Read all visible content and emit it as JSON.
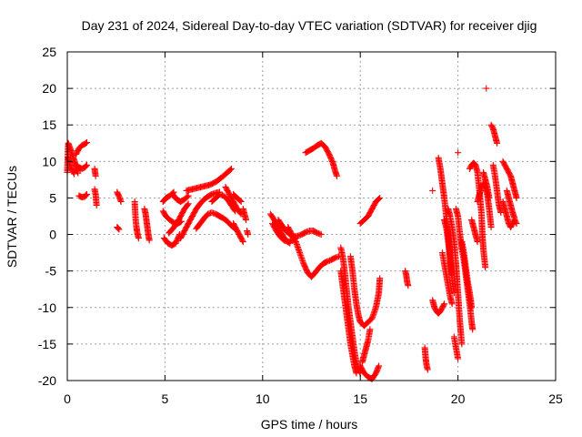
{
  "chart_data": {
    "type": "scatter",
    "title": "Day 231 of 2024, Sidereal Day-to-day VTEC variation (SDTVAR) for receiver djig",
    "xlabel": "GPS time / hours",
    "ylabel": "SDTVAR / TECUs",
    "xlim": [
      0,
      25
    ],
    "ylim": [
      -20,
      25
    ],
    "xticks": [
      0,
      5,
      10,
      15,
      20,
      25
    ],
    "yticks": [
      -20,
      -15,
      -10,
      -5,
      0,
      5,
      10,
      15,
      20,
      25
    ],
    "grid": true,
    "marker": "+",
    "color": "#ff0000",
    "segments": [
      [
        [
          0.0,
          8.5
        ],
        [
          0.05,
          12.5
        ],
        [
          0.15,
          11.8
        ],
        [
          0.25,
          11.0
        ],
        [
          0.35,
          10.2
        ],
        [
          0.45,
          9.2
        ],
        [
          0.55,
          8.4
        ]
      ],
      [
        [
          0.05,
          10.5
        ],
        [
          0.15,
          9.5
        ],
        [
          0.25,
          8.8
        ],
        [
          0.35,
          8.3
        ]
      ],
      [
        [
          0.45,
          11.0
        ],
        [
          0.6,
          11.8
        ],
        [
          0.75,
          12.2
        ],
        [
          0.9,
          12.4
        ],
        [
          1.0,
          12.6
        ]
      ],
      [
        [
          0.45,
          9.5
        ],
        [
          0.6,
          9.2
        ],
        [
          0.75,
          9.0
        ],
        [
          0.9,
          9.2
        ],
        [
          1.0,
          9.5
        ]
      ],
      [
        [
          0.6,
          5.3
        ],
        [
          0.75,
          5.1
        ],
        [
          0.9,
          5.2
        ],
        [
          1.0,
          5.5
        ]
      ],
      [
        [
          1.4,
          9.0
        ],
        [
          1.45,
          8.0
        ]
      ],
      [
        [
          1.4,
          6.2
        ],
        [
          1.45,
          5.5
        ],
        [
          1.5,
          4.0
        ]
      ],
      [
        [
          2.55,
          5.8
        ],
        [
          2.65,
          5.2
        ],
        [
          2.75,
          4.5
        ]
      ],
      [
        [
          2.55,
          1.0
        ],
        [
          2.65,
          0.7
        ]
      ],
      [
        [
          3.45,
          4.5
        ],
        [
          3.5,
          2.0
        ],
        [
          3.55,
          0.8
        ],
        [
          3.6,
          0.0
        ],
        [
          3.65,
          -0.5
        ]
      ],
      [
        [
          3.95,
          3.5
        ],
        [
          4.0,
          3.0
        ],
        [
          4.05,
          2.0
        ],
        [
          4.1,
          1.0
        ],
        [
          4.15,
          0.0
        ],
        [
          4.2,
          -0.8
        ]
      ],
      [
        [
          4.9,
          4.5
        ],
        [
          5.05,
          5.0
        ],
        [
          5.25,
          5.3
        ],
        [
          5.45,
          5.8
        ]
      ],
      [
        [
          4.9,
          3.2
        ],
        [
          5.05,
          2.5
        ],
        [
          5.25,
          2.0
        ],
        [
          5.45,
          1.6
        ],
        [
          5.65,
          1.5
        ],
        [
          5.85,
          1.8
        ]
      ],
      [
        [
          4.95,
          -0.5
        ],
        [
          5.15,
          -1.2
        ],
        [
          5.35,
          -1.5
        ],
        [
          5.55,
          -1.2
        ],
        [
          5.75,
          0.0
        ]
      ],
      [
        [
          5.2,
          0.2
        ],
        [
          5.4,
          0.8
        ],
        [
          5.6,
          1.5
        ],
        [
          5.8,
          2.5
        ],
        [
          6.0,
          3.5
        ],
        [
          6.2,
          4.2
        ]
      ],
      [
        [
          5.4,
          5.5
        ],
        [
          5.6,
          4.8
        ],
        [
          5.8,
          4.5
        ],
        [
          6.0,
          4.8
        ],
        [
          6.2,
          5.3
        ]
      ],
      [
        [
          5.8,
          -0.5
        ],
        [
          6.0,
          0.5
        ],
        [
          6.2,
          1.5
        ],
        [
          6.4,
          2.5
        ],
        [
          6.6,
          3.5
        ],
        [
          6.8,
          4.2
        ],
        [
          7.0,
          4.8
        ],
        [
          7.2,
          5.2
        ],
        [
          7.4,
          5.5
        ],
        [
          7.6,
          5.7
        ],
        [
          7.8,
          5.8
        ]
      ],
      [
        [
          6.1,
          6.0
        ],
        [
          6.4,
          6.2
        ],
        [
          6.7,
          6.4
        ],
        [
          7.0,
          6.6
        ],
        [
          7.3,
          6.8
        ],
        [
          7.6,
          7.2
        ],
        [
          7.9,
          7.8
        ],
        [
          8.2,
          8.5
        ],
        [
          8.4,
          9.0
        ]
      ],
      [
        [
          6.6,
          0.8
        ],
        [
          6.8,
          1.5
        ],
        [
          7.0,
          2.2
        ],
        [
          7.2,
          2.8
        ],
        [
          7.4,
          3.0
        ],
        [
          7.6,
          2.8
        ],
        [
          7.8,
          2.5
        ],
        [
          8.0,
          2.2
        ],
        [
          8.2,
          1.8
        ],
        [
          8.4,
          1.2
        ],
        [
          8.6,
          0.8
        ]
      ],
      [
        [
          7.4,
          4.5
        ],
        [
          7.6,
          5.0
        ],
        [
          7.8,
          5.5
        ],
        [
          8.0,
          5.3
        ],
        [
          8.2,
          4.8
        ],
        [
          8.4,
          4.0
        ],
        [
          8.6,
          3.2
        ]
      ],
      [
        [
          8.1,
          6.5
        ],
        [
          8.3,
          5.5
        ],
        [
          8.5,
          4.5
        ],
        [
          8.7,
          3.5
        ],
        [
          8.9,
          2.8
        ]
      ],
      [
        [
          8.5,
          5.5
        ],
        [
          8.7,
          5.0
        ],
        [
          8.9,
          4.5
        ]
      ],
      [
        [
          8.5,
          1.5
        ],
        [
          8.7,
          0.5
        ],
        [
          8.9,
          -0.5
        ],
        [
          9.0,
          -1.0
        ]
      ],
      [
        [
          9.0,
          3.5
        ],
        [
          9.1,
          2.5
        ],
        [
          9.15,
          2.0
        ]
      ],
      [
        [
          9.2,
          0.5
        ],
        [
          9.25,
          0.0
        ]
      ],
      [
        [
          10.4,
          2.8
        ],
        [
          10.6,
          2.0
        ],
        [
          10.8,
          1.0
        ],
        [
          11.0,
          0.0
        ],
        [
          11.2,
          -0.8
        ],
        [
          11.4,
          -1.2
        ]
      ],
      [
        [
          10.5,
          1.5
        ],
        [
          10.7,
          0.5
        ],
        [
          10.9,
          -0.3
        ],
        [
          11.1,
          -0.8
        ],
        [
          11.3,
          -1.0
        ],
        [
          11.5,
          -0.8
        ],
        [
          11.7,
          -0.5
        ]
      ],
      [
        [
          10.8,
          2.0
        ],
        [
          11.0,
          1.2
        ],
        [
          11.2,
          0.5
        ],
        [
          11.4,
          0.0
        ],
        [
          11.6,
          -0.3
        ],
        [
          11.8,
          -0.2
        ],
        [
          12.0,
          0.0
        ],
        [
          12.2,
          0.3
        ],
        [
          12.4,
          0.5
        ],
        [
          12.6,
          0.5
        ],
        [
          12.8,
          0.2
        ],
        [
          13.0,
          0.0
        ]
      ],
      [
        [
          11.3,
          1.0
        ],
        [
          11.5,
          0.0
        ],
        [
          11.7,
          -1.0
        ],
        [
          11.9,
          -2.5
        ],
        [
          12.1,
          -4.0
        ],
        [
          12.3,
          -5.2
        ],
        [
          12.5,
          -5.8
        ],
        [
          12.7,
          -5.2
        ],
        [
          12.9,
          -4.5
        ],
        [
          13.1,
          -4.0
        ],
        [
          13.3,
          -3.7
        ],
        [
          13.5,
          -3.5
        ],
        [
          13.7,
          -3.2
        ],
        [
          13.9,
          -3.0
        ]
      ],
      [
        [
          12.2,
          11.2
        ],
        [
          12.4,
          11.5
        ],
        [
          12.6,
          11.8
        ],
        [
          12.8,
          12.2
        ],
        [
          13.0,
          12.5
        ],
        [
          13.2,
          12.0
        ],
        [
          13.4,
          11.0
        ],
        [
          13.6,
          9.8
        ],
        [
          13.7,
          8.8
        ],
        [
          13.8,
          8.0
        ]
      ],
      [
        [
          14.0,
          -1.8
        ],
        [
          14.1,
          -3.0
        ],
        [
          14.2,
          -5.0
        ],
        [
          14.3,
          -7.5
        ],
        [
          14.4,
          -10.0
        ],
        [
          14.5,
          -12.0
        ],
        [
          14.6,
          -14.0
        ],
        [
          14.7,
          -16.0
        ],
        [
          14.8,
          -17.5
        ],
        [
          14.9,
          -18.5
        ],
        [
          15.0,
          -19.0
        ]
      ],
      [
        [
          14.0,
          -5.0
        ],
        [
          14.1,
          -7.0
        ],
        [
          14.2,
          -9.0
        ],
        [
          14.3,
          -11.0
        ],
        [
          14.4,
          -13.0
        ],
        [
          14.5,
          -15.0
        ],
        [
          14.6,
          -16.5
        ],
        [
          14.7,
          -18.0
        ],
        [
          14.8,
          -19.0
        ]
      ],
      [
        [
          14.5,
          -3.0
        ],
        [
          14.6,
          -5.0
        ],
        [
          14.7,
          -7.5
        ],
        [
          14.8,
          -9.5
        ],
        [
          14.9,
          -11.0
        ],
        [
          15.0,
          -12.0
        ],
        [
          15.2,
          -12.5
        ],
        [
          15.4,
          -12.0
        ],
        [
          15.6,
          -11.5
        ],
        [
          15.8,
          -10.0
        ],
        [
          15.95,
          -8.0
        ],
        [
          16.0,
          -6.0
        ]
      ],
      [
        [
          15.0,
          -18.0
        ],
        [
          15.2,
          -19.0
        ],
        [
          15.4,
          -19.5
        ],
        [
          15.6,
          -19.8
        ],
        [
          15.8,
          -19.0
        ],
        [
          15.95,
          -18.0
        ]
      ],
      [
        [
          15.1,
          -17.5
        ],
        [
          15.2,
          -16.5
        ],
        [
          15.3,
          -15.5
        ],
        [
          15.4,
          -14.5
        ],
        [
          15.5,
          -13.0
        ]
      ],
      [
        [
          15.0,
          1.5
        ],
        [
          15.2,
          2.0
        ],
        [
          15.4,
          2.5
        ],
        [
          15.6,
          3.5
        ],
        [
          15.8,
          4.5
        ],
        [
          16.0,
          5.0
        ]
      ],
      [
        [
          17.3,
          -5.0
        ],
        [
          17.35,
          -5.5
        ],
        [
          17.4,
          -6.5
        ],
        [
          17.45,
          -7.0
        ]
      ],
      [
        [
          18.3,
          -15.5
        ],
        [
          18.35,
          -17.0
        ],
        [
          18.4,
          -18.0
        ],
        [
          18.45,
          -18.5
        ]
      ],
      [
        [
          18.7,
          -9.0
        ],
        [
          18.8,
          -10.0
        ],
        [
          18.9,
          -10.5
        ],
        [
          19.0,
          -10.8
        ],
        [
          19.1,
          -10.5
        ],
        [
          19.2,
          -10.0
        ],
        [
          19.3,
          -9.5
        ]
      ],
      [
        [
          18.7,
          6.0
        ]
      ],
      [
        [
          19.0,
          10.5
        ],
        [
          19.1,
          9.0
        ],
        [
          19.2,
          7.0
        ],
        [
          19.3,
          5.0
        ],
        [
          19.4,
          2.5
        ],
        [
          19.5,
          0.0
        ],
        [
          19.6,
          -3.0
        ],
        [
          19.7,
          -6.0
        ],
        [
          19.8,
          -8.0
        ]
      ],
      [
        [
          19.3,
          2.0
        ],
        [
          19.4,
          1.0
        ],
        [
          19.5,
          -1.0
        ],
        [
          19.6,
          -3.5
        ],
        [
          19.7,
          -5.5
        ]
      ],
      [
        [
          19.2,
          -2.5
        ],
        [
          19.3,
          -4.0
        ],
        [
          19.4,
          -5.5
        ],
        [
          19.5,
          -7.0
        ],
        [
          19.6,
          -8.5
        ],
        [
          19.7,
          -9.5
        ]
      ],
      [
        [
          19.5,
          3.5
        ],
        [
          19.6,
          2.5
        ],
        [
          19.7,
          1.0
        ],
        [
          19.8,
          -1.0
        ],
        [
          19.9,
          -4.0
        ],
        [
          20.0,
          -8.0
        ],
        [
          20.1,
          -12.0
        ],
        [
          20.2,
          -15.0
        ]
      ],
      [
        [
          19.8,
          -14.0
        ],
        [
          19.9,
          -15.5
        ],
        [
          20.0,
          -17.0
        ]
      ],
      [
        [
          19.9,
          3.5
        ],
        [
          20.0,
          2.5
        ],
        [
          20.1,
          0.0
        ],
        [
          20.2,
          -2.0
        ],
        [
          20.3,
          -3.5
        ],
        [
          20.4,
          -5.5
        ],
        [
          20.5,
          -7.5
        ],
        [
          20.6,
          -9.5
        ],
        [
          20.7,
          -12.0
        ],
        [
          20.75,
          -13.0
        ]
      ],
      [
        [
          20.0,
          11.2
        ]
      ],
      [
        [
          20.2,
          -1.0
        ],
        [
          20.3,
          -2.5
        ],
        [
          20.4,
          -4.5
        ],
        [
          20.5,
          -6.5
        ],
        [
          20.6,
          -8.0
        ],
        [
          20.7,
          -10.0
        ]
      ],
      [
        [
          20.6,
          9.0
        ],
        [
          20.7,
          9.5
        ],
        [
          20.8,
          9.8
        ],
        [
          20.9,
          9.5
        ],
        [
          21.0,
          8.5
        ],
        [
          21.1,
          6.0
        ],
        [
          21.2,
          3.0
        ],
        [
          21.25,
          0.0
        ],
        [
          21.3,
          -2.0
        ],
        [
          21.4,
          -4.5
        ]
      ],
      [
        [
          20.7,
          2.0
        ],
        [
          20.8,
          1.0
        ],
        [
          20.9,
          0.0
        ],
        [
          21.0,
          -1.0
        ]
      ],
      [
        [
          21.0,
          4.5
        ],
        [
          21.1,
          5.5
        ],
        [
          21.2,
          6.5
        ],
        [
          21.3,
          7.0
        ],
        [
          21.4,
          6.5
        ],
        [
          21.5,
          5.5
        ],
        [
          21.6,
          3.5
        ],
        [
          21.7,
          1.0
        ]
      ],
      [
        [
          21.3,
          8.5
        ],
        [
          21.4,
          7.5
        ],
        [
          21.5,
          6.5
        ],
        [
          21.6,
          5.0
        ]
      ],
      [
        [
          21.45,
          20.0
        ]
      ],
      [
        [
          21.7,
          15.0
        ],
        [
          21.8,
          14.5
        ],
        [
          21.9,
          13.5
        ],
        [
          22.0,
          12.5
        ]
      ],
      [
        [
          21.8,
          9.5
        ],
        [
          21.9,
          8.0
        ],
        [
          22.0,
          6.0
        ],
        [
          22.1,
          4.0
        ],
        [
          22.2,
          3.0
        ]
      ],
      [
        [
          22.3,
          10.0
        ],
        [
          22.4,
          9.5
        ],
        [
          22.5,
          9.0
        ],
        [
          22.6,
          8.5
        ],
        [
          22.7,
          8.0
        ],
        [
          22.8,
          7.0
        ],
        [
          22.9,
          6.0
        ],
        [
          23.0,
          5.0
        ]
      ],
      [
        [
          22.3,
          4.5
        ],
        [
          22.4,
          3.5
        ],
        [
          22.5,
          2.5
        ],
        [
          22.6,
          1.5
        ],
        [
          22.7,
          1.0
        ],
        [
          22.8,
          1.5
        ],
        [
          22.9,
          2.0
        ],
        [
          23.0,
          1.5
        ]
      ],
      [
        [
          22.5,
          6.0
        ],
        [
          22.6,
          5.0
        ],
        [
          22.7,
          4.0
        ],
        [
          22.8,
          3.0
        ],
        [
          22.9,
          2.2
        ]
      ]
    ]
  }
}
